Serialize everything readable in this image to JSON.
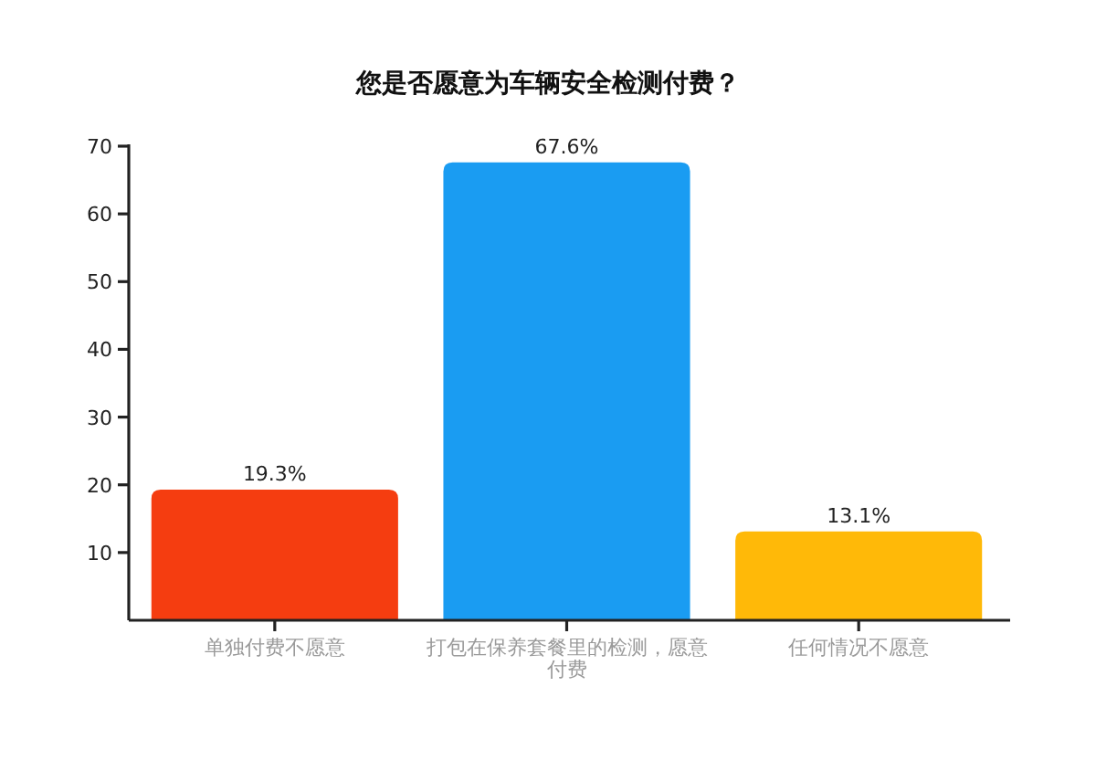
{
  "chart_data": {
    "type": "bar",
    "title": "您是否愿意为车辆安全检测付费？",
    "categories": [
      "单独付费不愿意",
      "打包在保养套餐里的检测，愿意付费",
      "任何情况不愿意"
    ],
    "values": [
      19.3,
      67.6,
      13.1
    ],
    "colors": [
      "#f53d10",
      "#1a9cf2",
      "#ffb908"
    ],
    "value_labels": [
      "19.3%",
      "67.6%",
      "13.1%"
    ],
    "ylim": [
      0,
      70
    ],
    "yticks": [
      10,
      20,
      30,
      40,
      50,
      60,
      70
    ]
  }
}
